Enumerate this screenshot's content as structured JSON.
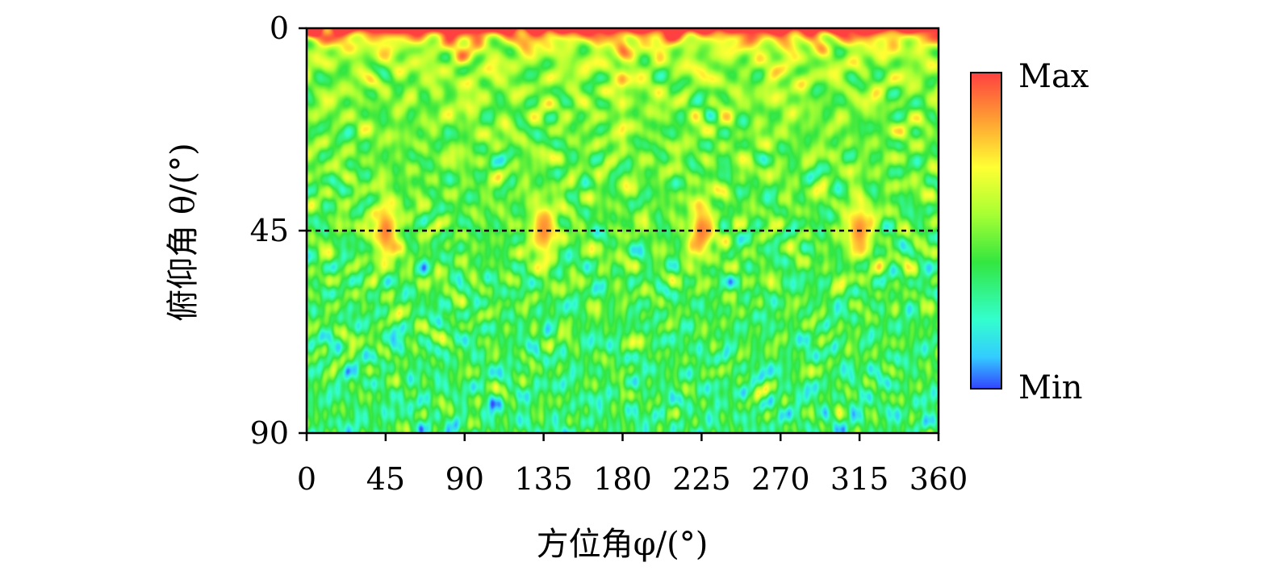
{
  "chart_data": {
    "type": "heatmap",
    "title": "",
    "xlabel": "方位角φ/(°)",
    "ylabel": "俯仰角 θ/(°)",
    "x_range": [
      0,
      360
    ],
    "y_range": [
      0,
      90
    ],
    "y_inverted": true,
    "x_ticks": [
      "0",
      "45",
      "90",
      "135",
      "180",
      "225",
      "270",
      "315",
      "360"
    ],
    "x_tick_values": [
      0,
      45,
      90,
      135,
      180,
      225,
      270,
      315,
      360
    ],
    "y_ticks": [
      "0",
      "45",
      "90"
    ],
    "y_tick_values": [
      0,
      45,
      90
    ],
    "reference_line": {
      "theta": 45,
      "style": "dashed"
    },
    "hotspots": [
      {
        "phi": 45,
        "theta": 45,
        "level": 0.9
      },
      {
        "phi": 135,
        "theta": 45,
        "level": 0.88
      },
      {
        "phi": 225,
        "theta": 45,
        "level": 0.9
      },
      {
        "phi": 315,
        "theta": 45,
        "level": 0.88
      }
    ],
    "colorbar": {
      "max_label": "Max",
      "min_label": "Min",
      "colors": [
        "#ff4040",
        "#ff9933",
        "#ffff33",
        "#a6ff33",
        "#33e640",
        "#33ffcc",
        "#33ccff",
        "#3344ff"
      ]
    }
  }
}
